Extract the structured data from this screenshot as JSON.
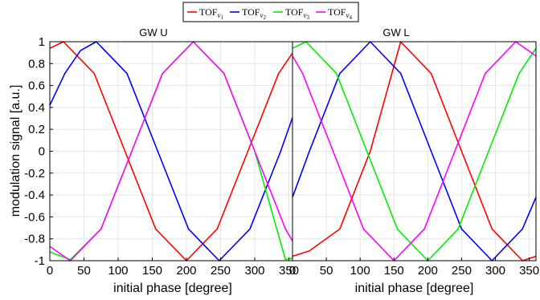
{
  "legend": {
    "entries": [
      {
        "base": "TOF",
        "sub": "ν",
        "subsub": "1",
        "color": "#ff0000"
      },
      {
        "base": "TOF",
        "sub": "ν",
        "subsub": "2",
        "color": "#0000ff"
      },
      {
        "base": "TOF",
        "sub": "ν",
        "subsub": "3",
        "color": "#00ee00"
      },
      {
        "base": "TOF",
        "sub": "ν",
        "subsub": "4",
        "color": "#ff00ff"
      }
    ]
  },
  "chart_data": [
    {
      "type": "line",
      "title": "GW U",
      "xlabel": "initial phase [degree]",
      "ylabel": "modulation signal [a.u.]",
      "xlim": [
        0,
        360
      ],
      "ylim": [
        -1,
        1
      ],
      "xticks": [
        "0",
        "50",
        "100",
        "150",
        "200",
        "250",
        "300",
        "350"
      ],
      "yticks": [
        "1",
        "0.8",
        "0.6",
        "0.4",
        "0.2",
        "0",
        "-0.2",
        "-0.4",
        "-0.6",
        "-0.8",
        "-1"
      ],
      "grid": true,
      "series": [
        {
          "name": "TOF ν1",
          "color": "#ff0000",
          "x": [
            0,
            20,
            65,
            110,
            155,
            200,
            245,
            290,
            335,
            360
          ],
          "y": [
            0.94,
            1.0,
            0.71,
            0.0,
            -0.71,
            -1.0,
            -0.71,
            0.0,
            0.71,
            0.94
          ]
        },
        {
          "name": "TOF ν2",
          "color": "#0000ff",
          "x": [
            0,
            22,
            45,
            68,
            113,
            158,
            203,
            248,
            293,
            338,
            360
          ],
          "y": [
            0.42,
            0.71,
            0.92,
            1.0,
            0.71,
            0.0,
            -0.71,
            -1.0,
            -0.71,
            0.0,
            0.39
          ]
        },
        {
          "name": "TOF ν3",
          "color": "#00ee00",
          "x": [
            0,
            30,
            75,
            120,
            165,
            210,
            255,
            300,
            345,
            360
          ],
          "y": [
            -0.92,
            -0.99,
            -0.71,
            0.0,
            0.71,
            1.0,
            0.71,
            0.0,
            -0.99,
            -0.97
          ]
        },
        {
          "name": "TOF ν4",
          "color": "#ff00ff",
          "x": [
            0,
            30,
            75,
            120,
            165,
            210,
            255,
            300,
            345,
            360
          ],
          "y": [
            -0.87,
            -1.0,
            -0.71,
            0.0,
            0.71,
            1.0,
            0.71,
            0.0,
            -0.71,
            -0.87
          ]
        }
      ]
    },
    {
      "type": "line",
      "title": "GW L",
      "xlabel": "initial phase [degree]",
      "ylabel": "",
      "xlim": [
        0,
        360
      ],
      "ylim": [
        -1,
        1
      ],
      "xticks": [
        "0",
        "50",
        "100",
        "150",
        "200",
        "250",
        "300",
        "350"
      ],
      "yticks": [],
      "grid": true,
      "series": [
        {
          "name": "TOF ν1",
          "color": "#ff0000",
          "x": [
            0,
            25,
            70,
            115,
            160,
            205,
            250,
            295,
            340,
            360
          ],
          "y": [
            -0.96,
            -0.91,
            -0.71,
            0.0,
            1.0,
            0.71,
            0.0,
            -0.71,
            -1.0,
            -0.96
          ]
        },
        {
          "name": "TOF ν2",
          "color": "#0000ff",
          "x": [
            0,
            25,
            70,
            115,
            160,
            205,
            250,
            295,
            340,
            360
          ],
          "y": [
            -0.42,
            0.0,
            0.71,
            1.0,
            0.71,
            0.0,
            -0.71,
            -1.0,
            -0.71,
            -0.42
          ]
        },
        {
          "name": "TOF ν3",
          "color": "#00ee00",
          "x": [
            0,
            20,
            65,
            110,
            155,
            200,
            245,
            290,
            335,
            360
          ],
          "y": [
            0.94,
            1.0,
            0.71,
            0.0,
            -0.71,
            -1.0,
            -0.71,
            0.0,
            0.71,
            0.94
          ]
        },
        {
          "name": "TOF ν4",
          "color": "#ff00ff",
          "x": [
            0,
            15,
            60,
            105,
            150,
            195,
            240,
            285,
            330,
            360
          ],
          "y": [
            0.87,
            0.71,
            0.0,
            -0.71,
            -1.0,
            -0.71,
            0.0,
            0.71,
            1.0,
            0.87
          ]
        }
      ]
    }
  ]
}
